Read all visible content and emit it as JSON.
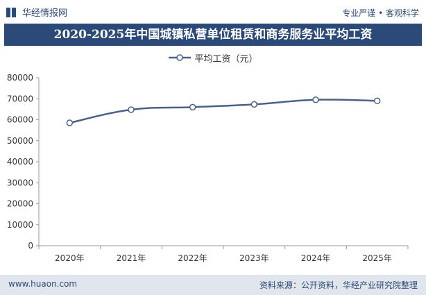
{
  "header": {
    "brand_name": "华经情报网",
    "tagline": "专业严谨 • 客观科学"
  },
  "chart_data": {
    "type": "line",
    "title": "2020-2025年中国城镇私营单位租赁和商务服务业平均工资",
    "categories": [
      "2020年",
      "2021年",
      "2022年",
      "2023年",
      "2024年",
      "2025年"
    ],
    "series": [
      {
        "name": "平均工资（元）",
        "values": [
          58500,
          64800,
          66000,
          67300,
          69500,
          69000
        ],
        "color": "#4a6187"
      }
    ],
    "ylim": [
      0,
      80000
    ],
    "yticks": [
      "0",
      "10000",
      "20000",
      "30000",
      "40000",
      "50000",
      "60000",
      "70000",
      "80000"
    ],
    "xlabel": "",
    "ylabel": "",
    "grid": false,
    "legend_position": "top-center"
  },
  "footer": {
    "url": "www.huaon.com",
    "source": "资料来源：公开资料，华经产业研究院整理"
  }
}
